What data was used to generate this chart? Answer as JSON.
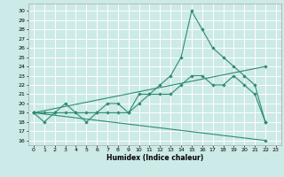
{
  "xlabel": "Humidex (Indice chaleur)",
  "bg_color": "#cceae7",
  "grid_color": "#ffffff",
  "line_color": "#2e8b74",
  "xlim": [
    -0.5,
    23.5
  ],
  "ylim": [
    15.5,
    30.8
  ],
  "xticks": [
    0,
    1,
    2,
    3,
    4,
    5,
    6,
    7,
    8,
    9,
    10,
    11,
    12,
    13,
    14,
    15,
    16,
    17,
    18,
    19,
    20,
    21,
    22,
    23
  ],
  "yticks": [
    16,
    17,
    18,
    19,
    20,
    21,
    22,
    23,
    24,
    25,
    26,
    27,
    28,
    29,
    30
  ],
  "line1_x": [
    0,
    1,
    2,
    3,
    4,
    5,
    6,
    7,
    8,
    9,
    10,
    11,
    12,
    13,
    14,
    15,
    16,
    17,
    18,
    19,
    20,
    21,
    22
  ],
  "line1_y": [
    19,
    19,
    19,
    20,
    19,
    19,
    19,
    20,
    20,
    19,
    21,
    21,
    22,
    23,
    25,
    30,
    28,
    26,
    25,
    24,
    23,
    22,
    18
  ],
  "line2_x": [
    0,
    1,
    2,
    3,
    4,
    5,
    6,
    7,
    8,
    9,
    10,
    11,
    12,
    13,
    14,
    15,
    16,
    17,
    18,
    19,
    20,
    21,
    22
  ],
  "line2_y": [
    19,
    18,
    19,
    19,
    19,
    18,
    19,
    19,
    19,
    19,
    20,
    21,
    21,
    21,
    22,
    23,
    23,
    22,
    22,
    23,
    22,
    21,
    18
  ],
  "line3_x": [
    0,
    22
  ],
  "line3_y": [
    19,
    16
  ],
  "line4_x": [
    0,
    22
  ],
  "line4_y": [
    19,
    24
  ]
}
